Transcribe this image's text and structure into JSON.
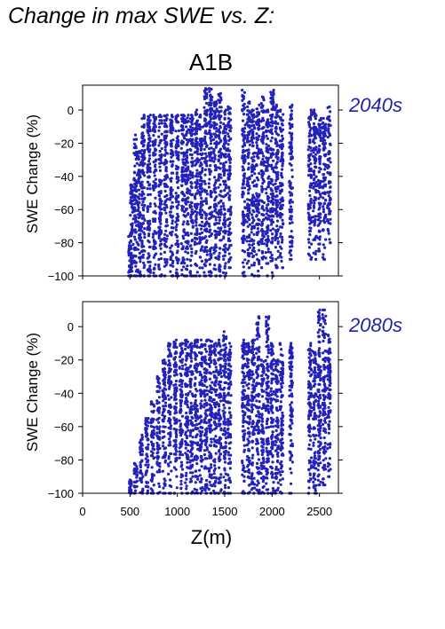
{
  "suptitle": "Change in max SWE vs. Z:",
  "scenario": "A1B",
  "colors": {
    "points": "#2222bb",
    "axis": "#000000",
    "decade_label": "#2222aa"
  },
  "chart_data": [
    {
      "type": "scatter",
      "panel_label": "2040s",
      "title": "",
      "xlabel": "",
      "ylabel": "SWE Change (%)",
      "xlim": [
        0,
        2700
      ],
      "ylim": [
        -100,
        15
      ],
      "xticks": [
        "0",
        "500",
        "1000",
        "1500",
        "2000",
        "2500"
      ],
      "yticks": [
        "0",
        "−20",
        "−40",
        "−60",
        "−80",
        "−100"
      ],
      "grid": false,
      "series": [
        {
          "columns": [
            {
              "z": 500,
              "ymin": -100,
              "ymax": -75
            },
            {
              "z": 520,
              "ymin": -100,
              "ymax": -45
            },
            {
              "z": 560,
              "ymin": -100,
              "ymax": -15
            },
            {
              "z": 600,
              "ymin": -100,
              "ymax": -25
            },
            {
              "z": 640,
              "ymin": -100,
              "ymax": -3
            },
            {
              "z": 700,
              "ymin": -100,
              "ymax": -3
            },
            {
              "z": 760,
              "ymin": -100,
              "ymax": -3
            },
            {
              "z": 820,
              "ymin": -100,
              "ymax": -3
            },
            {
              "z": 880,
              "ymin": -100,
              "ymax": -3
            },
            {
              "z": 940,
              "ymin": -100,
              "ymax": -3
            },
            {
              "z": 1000,
              "ymin": -100,
              "ymax": -3
            },
            {
              "z": 1060,
              "ymin": -100,
              "ymax": -3
            },
            {
              "z": 1100,
              "ymin": -100,
              "ymax": -3
            },
            {
              "z": 1150,
              "ymin": -100,
              "ymax": -3
            },
            {
              "z": 1200,
              "ymin": -100,
              "ymax": 0
            },
            {
              "z": 1250,
              "ymin": -100,
              "ymax": -3
            },
            {
              "z": 1300,
              "ymin": -100,
              "ymax": 13
            },
            {
              "z": 1350,
              "ymin": -100,
              "ymax": 13
            },
            {
              "z": 1400,
              "ymin": -100,
              "ymax": 5
            },
            {
              "z": 1450,
              "ymin": -100,
              "ymax": 10
            },
            {
              "z": 1500,
              "ymin": -100,
              "ymax": 0
            },
            {
              "z": 1550,
              "ymin": -95,
              "ymax": 2
            },
            {
              "z": 1700,
              "ymin": -100,
              "ymax": 12
            },
            {
              "z": 1750,
              "ymin": -95,
              "ymax": 5
            },
            {
              "z": 1800,
              "ymin": -100,
              "ymax": 0
            },
            {
              "z": 1850,
              "ymin": -100,
              "ymax": 3
            },
            {
              "z": 1900,
              "ymin": -95,
              "ymax": 8
            },
            {
              "z": 1950,
              "ymin": -100,
              "ymax": 0
            },
            {
              "z": 2000,
              "ymin": -100,
              "ymax": 12
            },
            {
              "z": 2050,
              "ymin": -95,
              "ymax": 3
            },
            {
              "z": 2100,
              "ymin": -95,
              "ymax": 0
            },
            {
              "z": 2200,
              "ymin": -90,
              "ymax": 3
            },
            {
              "z": 2400,
              "ymin": -90,
              "ymax": 0
            },
            {
              "z": 2450,
              "ymin": -90,
              "ymax": 0
            },
            {
              "z": 2500,
              "ymin": -85,
              "ymax": -5
            },
            {
              "z": 2550,
              "ymin": -90,
              "ymax": -5
            },
            {
              "z": 2600,
              "ymin": -80,
              "ymax": 2
            }
          ]
        }
      ]
    },
    {
      "type": "scatter",
      "panel_label": "2080s",
      "title": "",
      "xlabel": "Z(m)",
      "ylabel": "SWE Change (%)",
      "xlim": [
        0,
        2700
      ],
      "ylim": [
        -100,
        15
      ],
      "xticks": [
        "0",
        "500",
        "1000",
        "1500",
        "2000",
        "2500"
      ],
      "yticks": [
        "0",
        "−20",
        "−40",
        "−60",
        "−80",
        "−100"
      ],
      "grid": false,
      "series": [
        {
          "columns": [
            {
              "z": 500,
              "ymin": -100,
              "ymax": -92
            },
            {
              "z": 560,
              "ymin": -100,
              "ymax": -82
            },
            {
              "z": 620,
              "ymin": -100,
              "ymax": -65
            },
            {
              "z": 680,
              "ymin": -100,
              "ymax": -55
            },
            {
              "z": 740,
              "ymin": -100,
              "ymax": -45
            },
            {
              "z": 800,
              "ymin": -100,
              "ymax": -30
            },
            {
              "z": 860,
              "ymin": -100,
              "ymax": -20
            },
            {
              "z": 920,
              "ymin": -100,
              "ymax": -10
            },
            {
              "z": 980,
              "ymin": -100,
              "ymax": -8
            },
            {
              "z": 1040,
              "ymin": -100,
              "ymax": -10
            },
            {
              "z": 1100,
              "ymin": -100,
              "ymax": -8
            },
            {
              "z": 1150,
              "ymin": -100,
              "ymax": -10
            },
            {
              "z": 1200,
              "ymin": -100,
              "ymax": -8
            },
            {
              "z": 1250,
              "ymin": -100,
              "ymax": -8
            },
            {
              "z": 1300,
              "ymin": -100,
              "ymax": -8
            },
            {
              "z": 1350,
              "ymin": -100,
              "ymax": -8
            },
            {
              "z": 1400,
              "ymin": -100,
              "ymax": -10
            },
            {
              "z": 1450,
              "ymin": -100,
              "ymax": -8
            },
            {
              "z": 1500,
              "ymin": -100,
              "ymax": -3
            },
            {
              "z": 1550,
              "ymin": -100,
              "ymax": -10
            },
            {
              "z": 1700,
              "ymin": -100,
              "ymax": -8
            },
            {
              "z": 1750,
              "ymin": -100,
              "ymax": -10
            },
            {
              "z": 1800,
              "ymin": -100,
              "ymax": -8
            },
            {
              "z": 1850,
              "ymin": -100,
              "ymax": 6
            },
            {
              "z": 1900,
              "ymin": -100,
              "ymax": -20
            },
            {
              "z": 1950,
              "ymin": -100,
              "ymax": 6
            },
            {
              "z": 2000,
              "ymin": -100,
              "ymax": -10
            },
            {
              "z": 2050,
              "ymin": -100,
              "ymax": -20
            },
            {
              "z": 2100,
              "ymin": -100,
              "ymax": -10
            },
            {
              "z": 2200,
              "ymin": -100,
              "ymax": -10
            },
            {
              "z": 2400,
              "ymin": -100,
              "ymax": -10
            },
            {
              "z": 2450,
              "ymin": -100,
              "ymax": -15
            },
            {
              "z": 2500,
              "ymin": -95,
              "ymax": 10
            },
            {
              "z": 2550,
              "ymin": -95,
              "ymax": 10
            },
            {
              "z": 2600,
              "ymin": -90,
              "ymax": -5
            }
          ]
        }
      ]
    }
  ]
}
